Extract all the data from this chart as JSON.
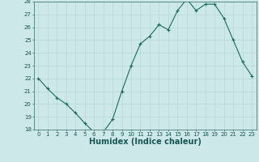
{
  "x": [
    0,
    1,
    2,
    3,
    4,
    5,
    6,
    7,
    8,
    9,
    10,
    11,
    12,
    13,
    14,
    15,
    16,
    17,
    18,
    19,
    20,
    21,
    22,
    23
  ],
  "y": [
    22.0,
    21.2,
    20.5,
    20.0,
    19.3,
    18.5,
    17.8,
    17.8,
    18.8,
    21.0,
    23.0,
    24.7,
    25.3,
    26.2,
    25.8,
    27.3,
    28.2,
    27.3,
    27.8,
    27.8,
    26.7,
    25.0,
    23.3,
    22.2
  ],
  "xlabel": "Humidex (Indice chaleur)",
  "ylim": [
    18,
    28
  ],
  "xlim": [
    -0.5,
    23.5
  ],
  "yticks": [
    18,
    19,
    20,
    21,
    22,
    23,
    24,
    25,
    26,
    27,
    28
  ],
  "xticks": [
    0,
    1,
    2,
    3,
    4,
    5,
    6,
    7,
    8,
    9,
    10,
    11,
    12,
    13,
    14,
    15,
    16,
    17,
    18,
    19,
    20,
    21,
    22,
    23
  ],
  "line_color": "#1a6b5a",
  "marker_color": "#1a6b5a",
  "bg_color": "#cce8e8",
  "grid_color": "#b8d8d8",
  "plot_bg": "#cce8e8",
  "fig_bg": "#cce8e8",
  "xlabel_fontsize": 7,
  "tick_fontsize": 5
}
